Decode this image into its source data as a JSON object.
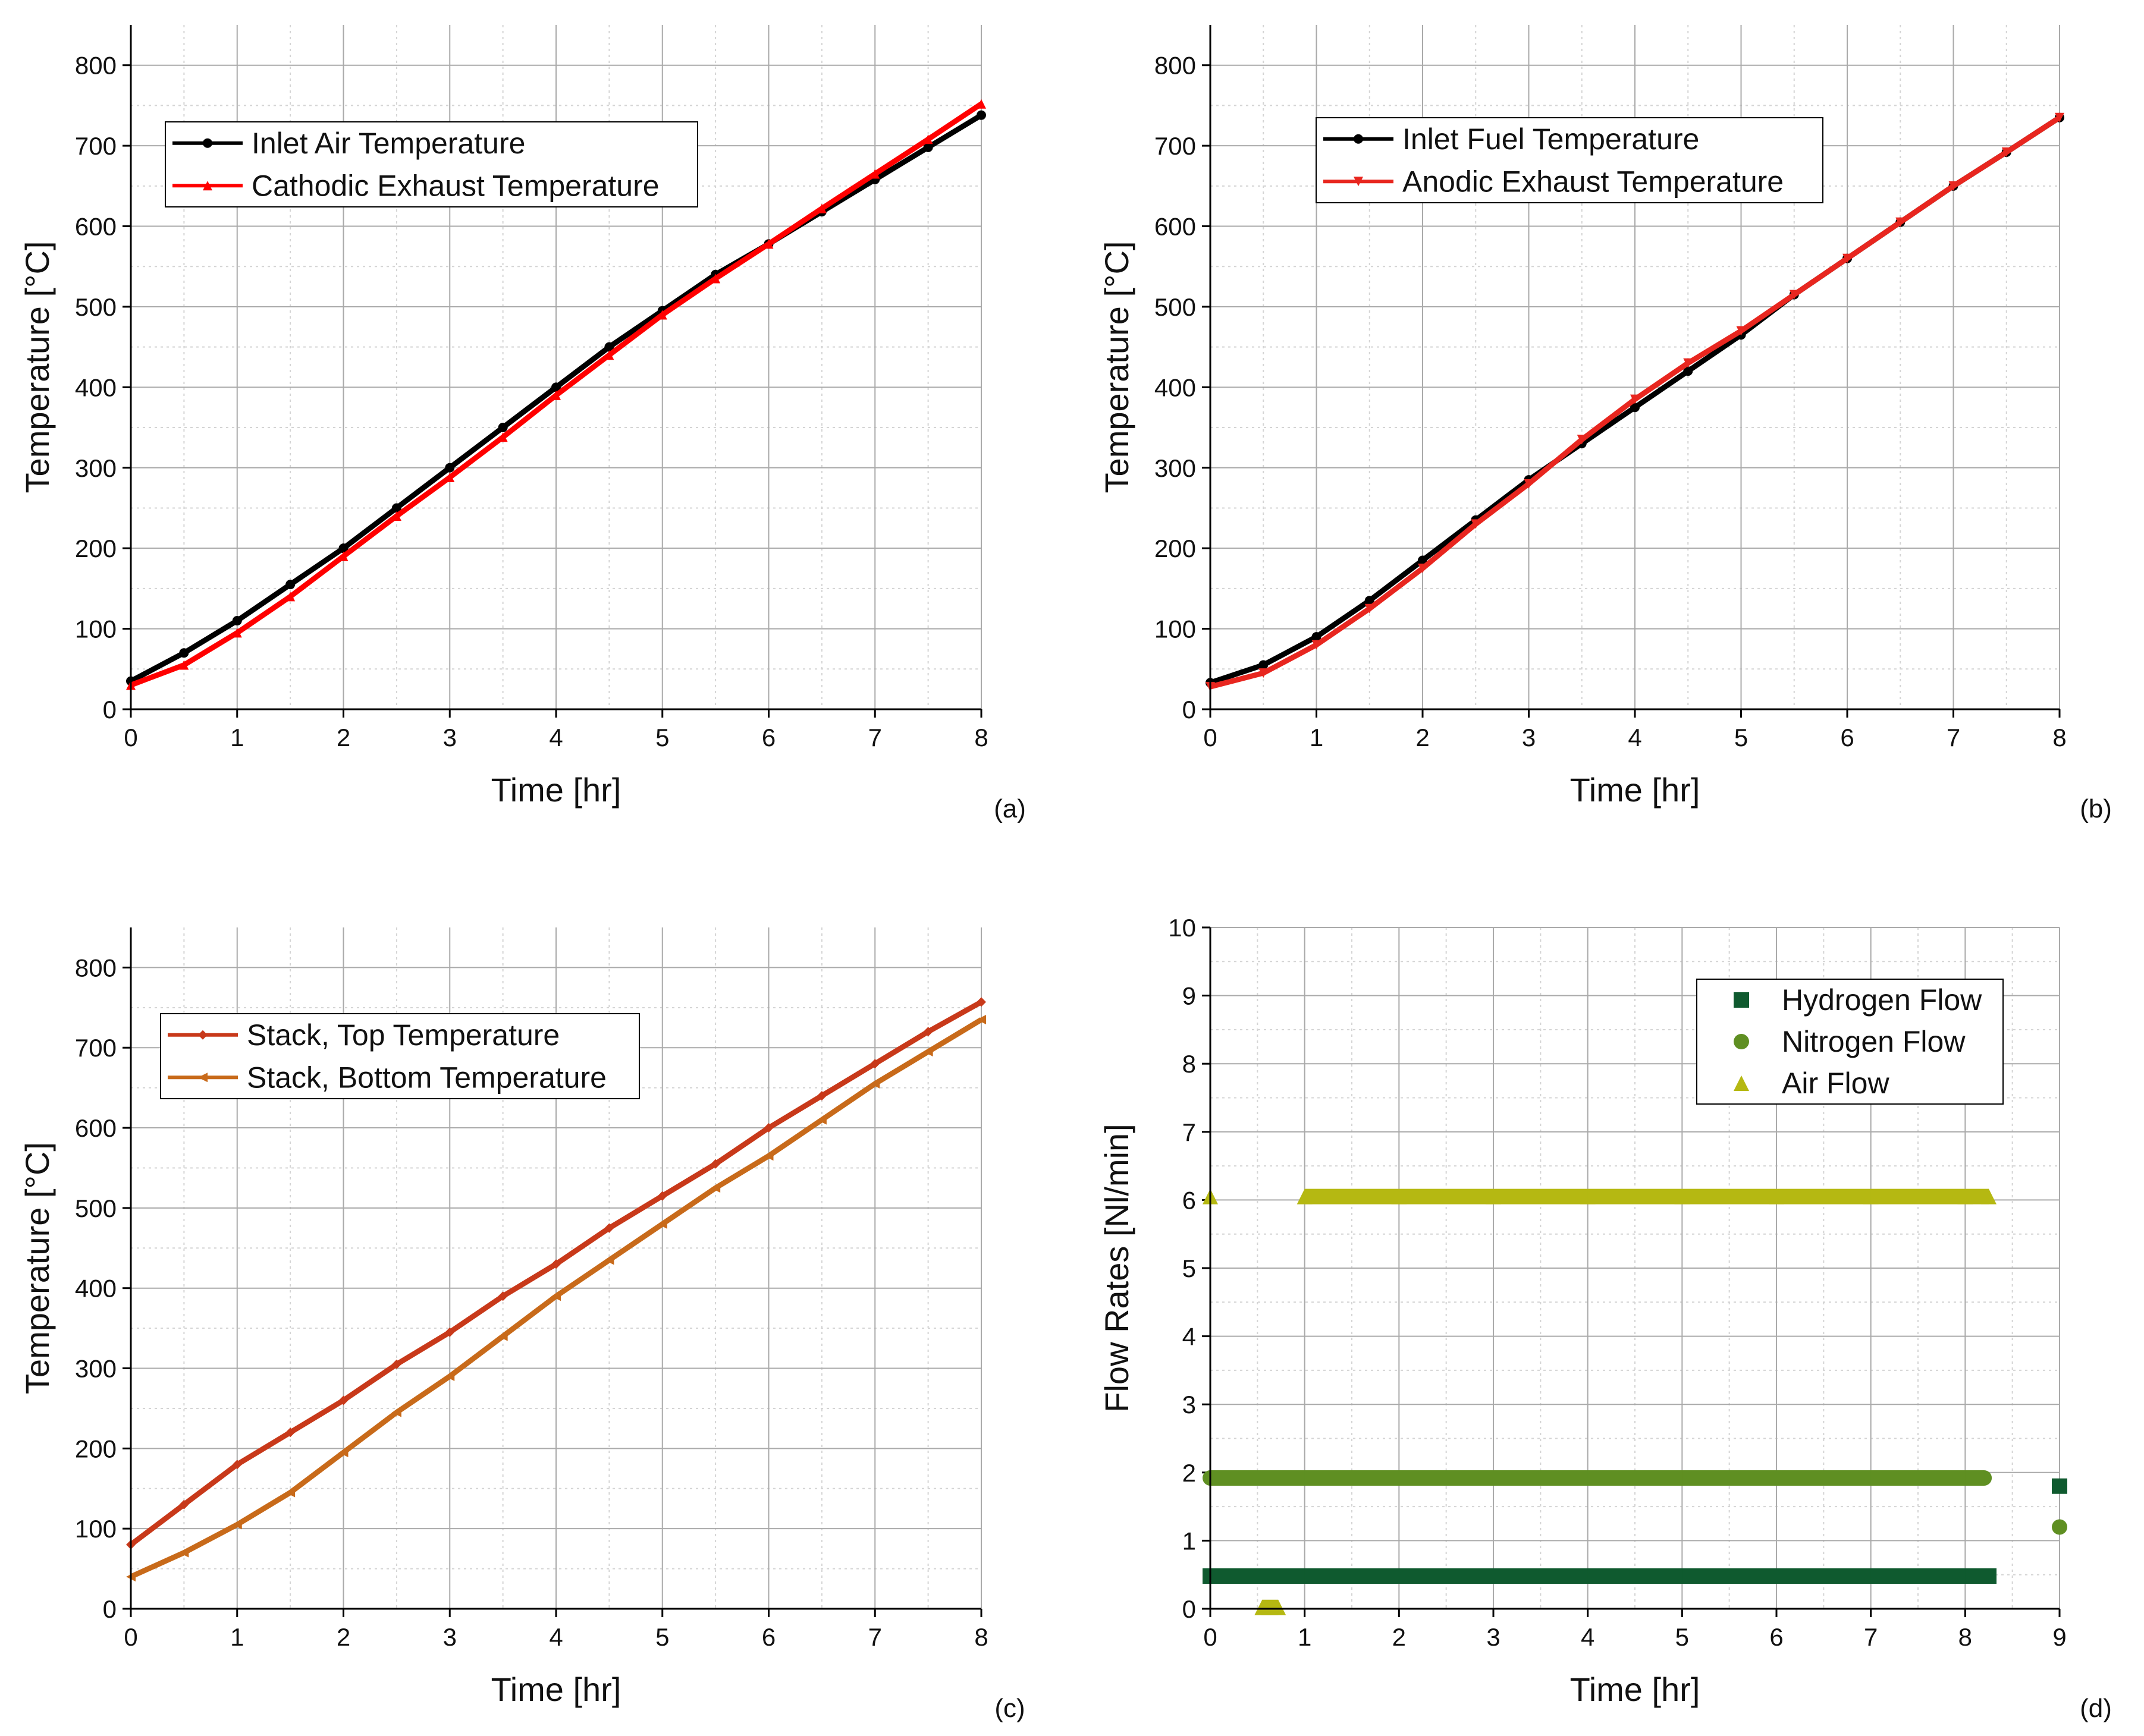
{
  "chart_data": [
    {
      "id": "a",
      "type": "line",
      "panel_label": "(a)",
      "xlabel": "Time [hr]",
      "ylabel": "Temperature [°C]",
      "xlim": [
        0,
        8
      ],
      "ylim": [
        0,
        850
      ],
      "xticks": [
        "0",
        "1",
        "2",
        "3",
        "4",
        "5",
        "6",
        "7",
        "8"
      ],
      "yticks": [
        "0",
        "100",
        "200",
        "300",
        "400",
        "500",
        "600",
        "700",
        "800"
      ],
      "grid": true,
      "legend_position": "top-left",
      "series": [
        {
          "name": "Inlet Air Temperature",
          "color": "#000000",
          "marker": "circle",
          "x": [
            0,
            0.5,
            1,
            1.5,
            2,
            2.5,
            3,
            3.5,
            4,
            4.5,
            5,
            5.5,
            6,
            6.5,
            7,
            7.5,
            8
          ],
          "y": [
            35,
            70,
            110,
            155,
            200,
            250,
            300,
            350,
            400,
            450,
            495,
            540,
            578,
            618,
            658,
            698,
            738
          ]
        },
        {
          "name": "Cathodic Exhaust Temperature",
          "color": "#ff0000",
          "marker": "triangle-up",
          "x": [
            0,
            0.5,
            1,
            1.5,
            2,
            2.5,
            3,
            3.5,
            4,
            4.5,
            5,
            5.5,
            6,
            6.5,
            7,
            7.5,
            8
          ],
          "y": [
            30,
            55,
            95,
            140,
            190,
            240,
            288,
            338,
            390,
            440,
            490,
            535,
            578,
            622,
            665,
            708,
            752
          ]
        }
      ]
    },
    {
      "id": "b",
      "type": "line",
      "panel_label": "(b)",
      "xlabel": "Time [hr]",
      "ylabel": "Temperature [°C]",
      "xlim": [
        0,
        8
      ],
      "ylim": [
        0,
        850
      ],
      "xticks": [
        "0",
        "1",
        "2",
        "3",
        "4",
        "5",
        "6",
        "7",
        "8"
      ],
      "yticks": [
        "0",
        "100",
        "200",
        "300",
        "400",
        "500",
        "600",
        "700",
        "800"
      ],
      "grid": true,
      "legend_position": "top-left",
      "series": [
        {
          "name": "Inlet Fuel Temperature",
          "color": "#000000",
          "marker": "circle",
          "x": [
            0,
            0.5,
            1,
            1.5,
            2,
            2.5,
            3,
            3.5,
            4,
            4.5,
            5,
            5.5,
            6,
            6.5,
            7,
            7.5,
            8
          ],
          "y": [
            33,
            55,
            90,
            135,
            185,
            235,
            285,
            330,
            375,
            420,
            465,
            515,
            560,
            605,
            650,
            692,
            735
          ]
        },
        {
          "name": "Anodic Exhaust Temperature",
          "color": "#e8261f",
          "marker": "triangle-down",
          "x": [
            0,
            0.5,
            1,
            1.5,
            2,
            2.5,
            3,
            3.5,
            4,
            4.5,
            5,
            5.5,
            6,
            6.5,
            7,
            7.5,
            8
          ],
          "y": [
            28,
            45,
            80,
            125,
            175,
            230,
            280,
            335,
            385,
            430,
            470,
            515,
            560,
            605,
            650,
            692,
            735
          ]
        }
      ]
    },
    {
      "id": "c",
      "type": "line",
      "panel_label": "(c)",
      "xlabel": "Time [hr]",
      "ylabel": "Temperature [°C]",
      "xlim": [
        0,
        8
      ],
      "ylim": [
        0,
        850
      ],
      "xticks": [
        "0",
        "1",
        "2",
        "3",
        "4",
        "5",
        "6",
        "7",
        "8"
      ],
      "yticks": [
        "0",
        "100",
        "200",
        "300",
        "400",
        "500",
        "600",
        "700",
        "800"
      ],
      "grid": true,
      "legend_position": "top-left",
      "series": [
        {
          "name": "Stack, Top Temperature",
          "color": "#c8391a",
          "marker": "diamond",
          "x": [
            0,
            0.5,
            1,
            1.5,
            2,
            2.5,
            3,
            3.5,
            4,
            4.5,
            5,
            5.5,
            6,
            6.5,
            7,
            7.5,
            8
          ],
          "y": [
            80,
            130,
            180,
            220,
            260,
            305,
            345,
            390,
            430,
            475,
            515,
            555,
            600,
            640,
            680,
            720,
            757
          ]
        },
        {
          "name": "Stack, Bottom Temperature",
          "color": "#c86a1a",
          "marker": "triangle-left",
          "x": [
            0,
            0.5,
            1,
            1.5,
            2,
            2.5,
            3,
            3.5,
            4,
            4.5,
            5,
            5.5,
            6,
            6.5,
            7,
            7.5,
            8
          ],
          "y": [
            40,
            70,
            105,
            145,
            195,
            245,
            290,
            340,
            390,
            435,
            480,
            525,
            565,
            610,
            655,
            695,
            735
          ]
        }
      ]
    },
    {
      "id": "d",
      "type": "scatter",
      "panel_label": "(d)",
      "xlabel": "Time [hr]",
      "ylabel": "Flow Rates [Nl/min]",
      "xlim": [
        0,
        9
      ],
      "ylim": [
        0,
        10
      ],
      "xticks": [
        "0",
        "1",
        "2",
        "3",
        "4",
        "5",
        "6",
        "7",
        "8",
        "9"
      ],
      "yticks": [
        "0",
        "1",
        "2",
        "3",
        "4",
        "5",
        "6",
        "7",
        "8",
        "9",
        "10"
      ],
      "grid": true,
      "legend_position": "top-right",
      "series": [
        {
          "name": "Hydrogen Flow",
          "color": "#0f5a2f",
          "marker": "square",
          "x": [
            0,
            1,
            2,
            3,
            4,
            5,
            6,
            7,
            8,
            8.25,
            9
          ],
          "y": [
            0.48,
            0.48,
            0.48,
            0.48,
            0.48,
            0.48,
            0.48,
            0.48,
            0.48,
            0.48,
            1.8
          ]
        },
        {
          "name": "Nitrogen Flow",
          "color": "#5f8f22",
          "marker": "circle",
          "x": [
            0,
            1,
            2,
            3,
            4,
            5,
            6,
            7,
            8,
            8.2,
            9
          ],
          "y": [
            1.92,
            1.92,
            1.92,
            1.92,
            1.92,
            1.92,
            1.92,
            1.92,
            1.92,
            1.92,
            1.2
          ]
        },
        {
          "name": "Air Flow",
          "color": "#b5b812",
          "marker": "triangle-up",
          "x": [
            0,
            0.55,
            0.62,
            0.72,
            1,
            2,
            3,
            4,
            5,
            6,
            7,
            8,
            8.25
          ],
          "y": [
            6.05,
            0.02,
            0.02,
            0.02,
            6.05,
            6.05,
            6.05,
            6.05,
            6.05,
            6.05,
            6.05,
            6.05,
            6.05
          ]
        }
      ]
    }
  ]
}
